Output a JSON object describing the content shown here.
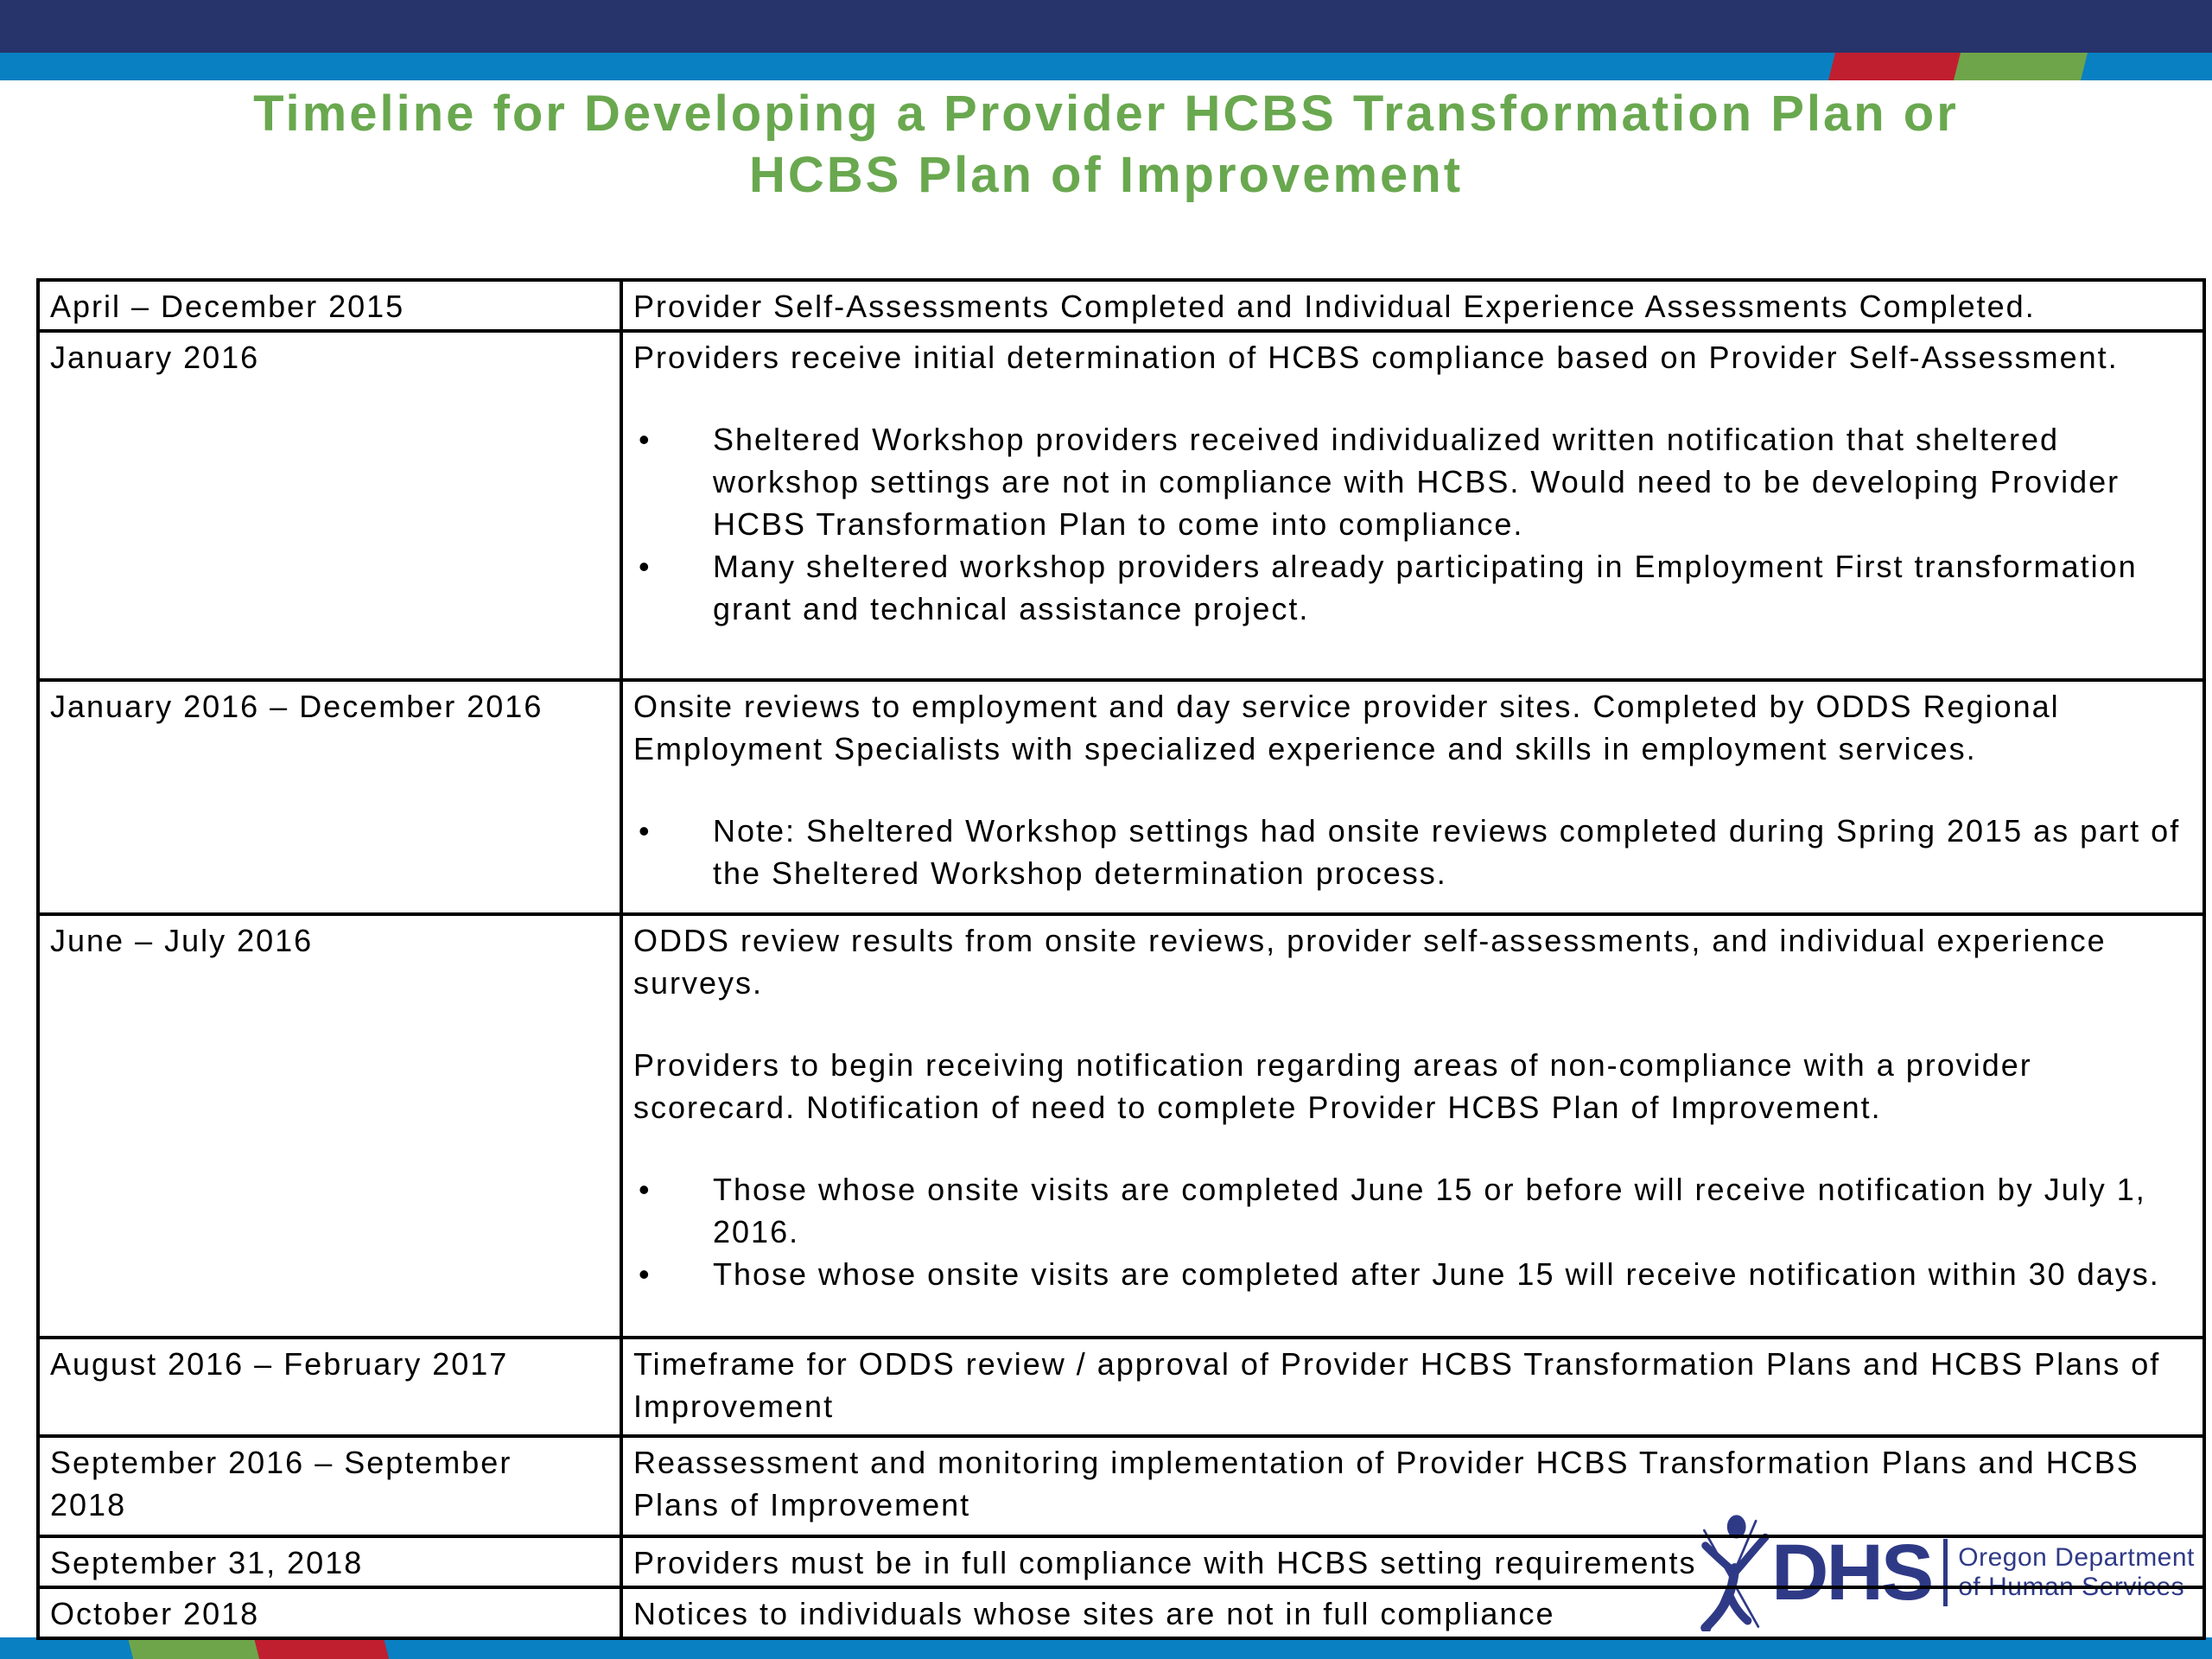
{
  "slide": {
    "title_line1": "Timeline for Developing a Provider HCBS Transformation Plan or",
    "title_line2": "HCBS Plan of Improvement"
  },
  "colors": {
    "navy_bar": "#27336B",
    "light_blue": "#0980C2",
    "accent_red": "#C01F2F",
    "accent_green": "#6FA54A",
    "title_green": "#69A84F",
    "logo_blue": "#2F3A87",
    "text_black": "#000000"
  },
  "table": {
    "rows": [
      {
        "date": "April – December 2015",
        "content": [
          {
            "type": "p",
            "text": "Provider Self-Assessments Completed and Individual Experience Assessments Completed."
          }
        ]
      },
      {
        "date": "January 2016",
        "content": [
          {
            "type": "p",
            "text": "Providers receive initial determination of HCBS compliance based on Provider Self-Assessment."
          },
          {
            "type": "bullets",
            "items": [
              "Sheltered Workshop providers received individualized written notification that sheltered workshop settings are not in compliance with HCBS. Would need to be developing Provider HCBS Transformation Plan to come into compliance.",
              "Many sheltered workshop providers already participating in Employment First transformation grant and technical assistance project."
            ]
          }
        ]
      },
      {
        "date": "January 2016 – December 2016",
        "content": [
          {
            "type": "p",
            "text": "Onsite reviews to employment and day service provider sites. Completed by ODDS Regional Employment Specialists with specialized experience and skills in employment services."
          },
          {
            "type": "bullets",
            "items": [
              "Note: Sheltered Workshop settings had onsite reviews completed during Spring 2015 as part of the Sheltered Workshop determination process."
            ]
          }
        ]
      },
      {
        "date": "June – July 2016",
        "content": [
          {
            "type": "p",
            "text": "ODDS review results from onsite reviews, provider self-assessments, and individual experience surveys."
          },
          {
            "type": "p",
            "text": "Providers to begin receiving notification regarding areas of non-compliance with a provider scorecard. Notification of need to complete Provider HCBS Plan of Improvement."
          },
          {
            "type": "bullets",
            "items": [
              "Those whose onsite visits are completed June 15 or before will receive notification by July 1, 2016.",
              "Those whose onsite visits are completed after June 15 will receive notification within 30 days."
            ]
          }
        ]
      },
      {
        "date": "August 2016 – February 2017",
        "content": [
          {
            "type": "p",
            "text": "Timeframe for ODDS review / approval of Provider HCBS Transformation Plans and HCBS Plans of Improvement"
          }
        ]
      },
      {
        "date": "September 2016 – September 2018",
        "content": [
          {
            "type": "p",
            "text": "Reassessment and monitoring implementation of Provider HCBS Transformation Plans and HCBS Plans of Improvement"
          }
        ]
      },
      {
        "date": "September 31, 2018",
        "content": [
          {
            "type": "p",
            "text": "Providers must be in full compliance with HCBS setting requirements"
          }
        ]
      },
      {
        "date": "October 2018",
        "content": [
          {
            "type": "p",
            "text": "Notices to individuals whose sites are not in full compliance"
          }
        ]
      }
    ]
  },
  "logo": {
    "acronym": "DHS",
    "org_line1": "Oregon Department",
    "org_line2": "of Human Services"
  }
}
